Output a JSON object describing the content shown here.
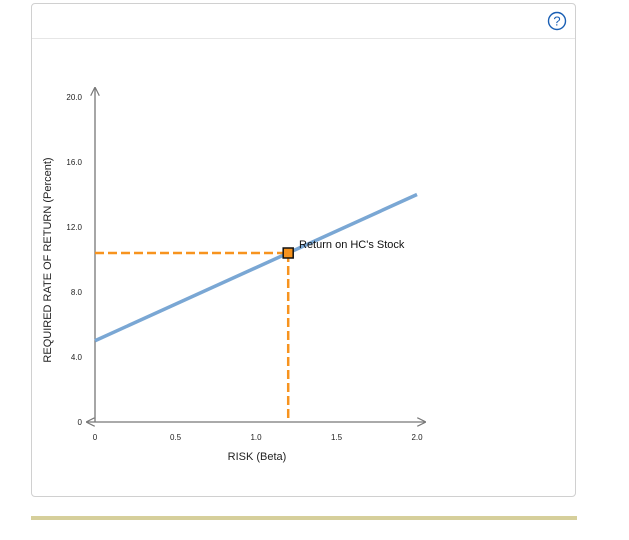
{
  "help": {
    "icon": "question-circle-icon",
    "label": "?"
  },
  "colors": {
    "sml_line": "#7aa7d4",
    "guide": "#f7931e",
    "point_fill": "#f7931e",
    "point_stroke": "#111111",
    "axis": "#777777",
    "help_blue": "#1a5fb4",
    "bottom_bar": "#d6cf9b"
  },
  "chart_data": {
    "type": "line",
    "xlabel": "RISK (Beta)",
    "ylabel": "REQUIRED RATE OF RETURN (Percent)",
    "xlim": [
      0,
      2.0
    ],
    "ylim": [
      0,
      20.0
    ],
    "x_ticks": [
      {
        "value": 0,
        "label": "0"
      },
      {
        "value": 0.5,
        "label": "0.5"
      },
      {
        "value": 1.0,
        "label": "1.0"
      },
      {
        "value": 1.5,
        "label": "1.5"
      },
      {
        "value": 2.0,
        "label": "2.0"
      }
    ],
    "y_ticks": [
      {
        "value": 0,
        "label": "0"
      },
      {
        "value": 4.0,
        "label": "4.0"
      },
      {
        "value": 8.0,
        "label": "8.0"
      },
      {
        "value": 12.0,
        "label": "12.0"
      },
      {
        "value": 16.0,
        "label": "16.0"
      },
      {
        "value": 20.0,
        "label": "20.0"
      }
    ],
    "series": [
      {
        "x": [
          0,
          2.0
        ],
        "y": [
          5.0,
          14.0
        ]
      }
    ],
    "point": {
      "x": 1.2,
      "y": 10.4,
      "label": "Return on HC's Stock"
    },
    "grid": false
  }
}
